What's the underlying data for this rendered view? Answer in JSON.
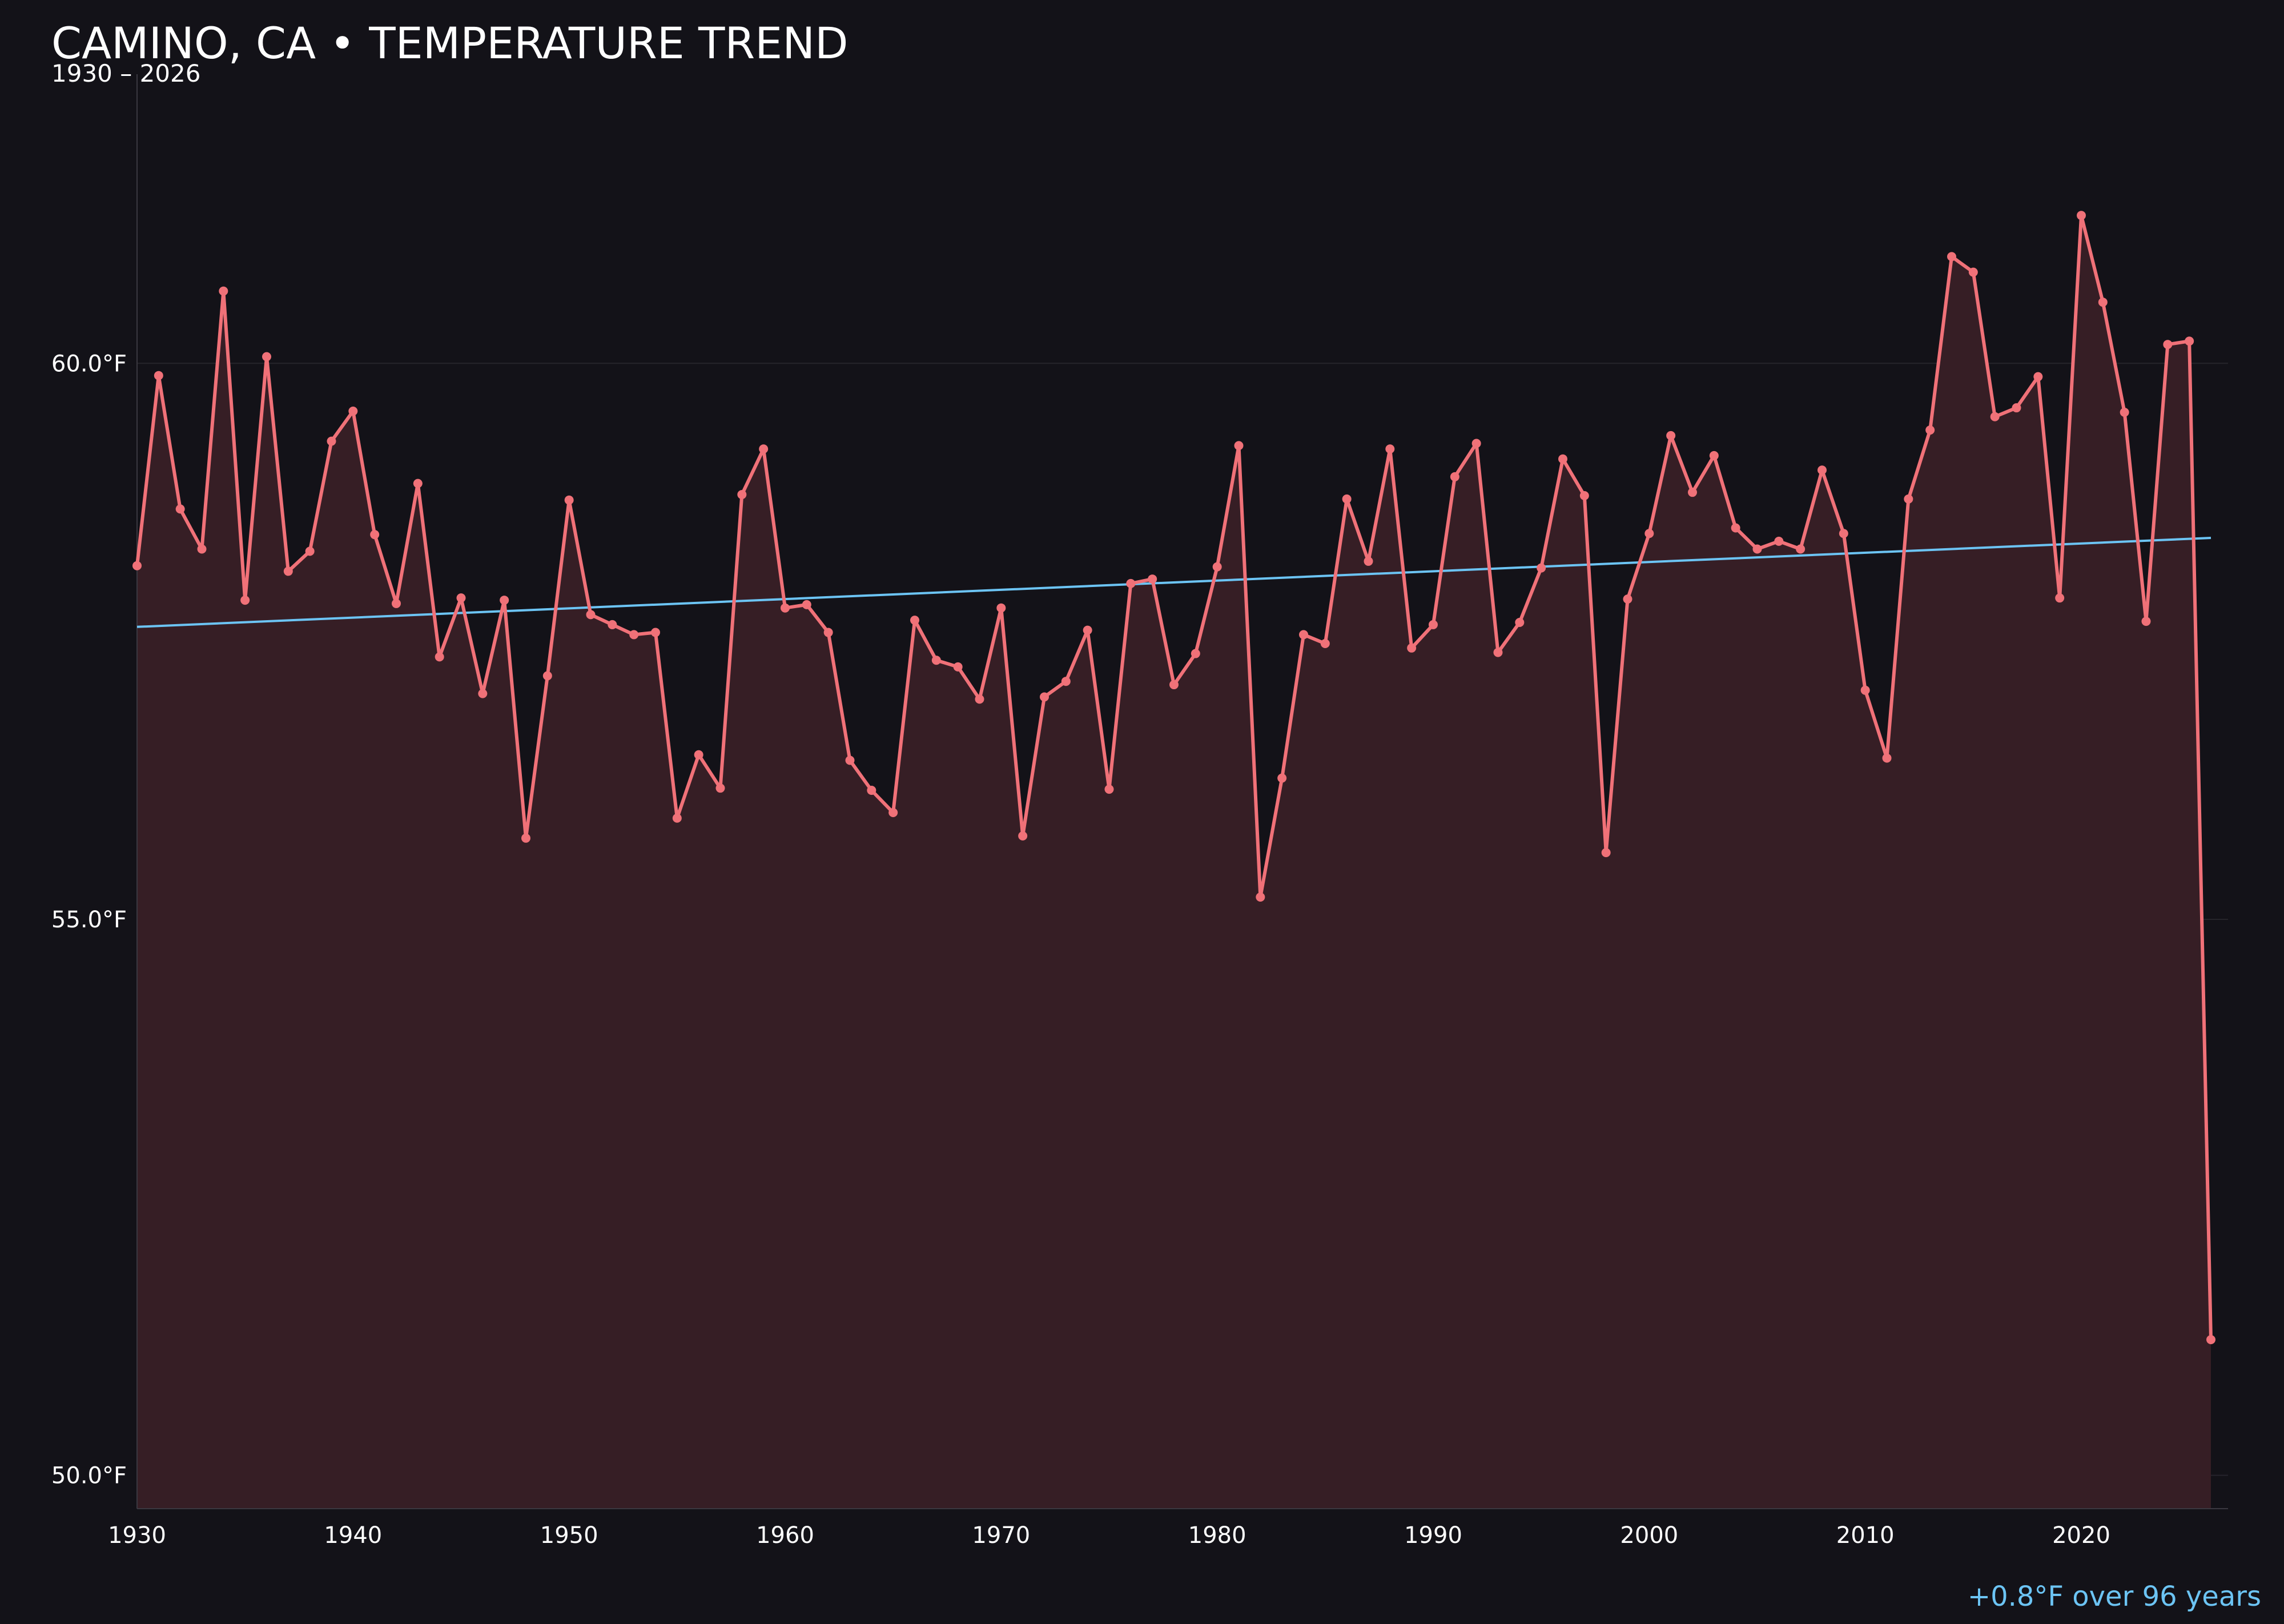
{
  "chart_data": {
    "type": "line",
    "title": "CAMINO, CA • TEMPERATURE TREND",
    "subtitle": "1930 – 2026",
    "xlabel": "",
    "ylabel": "",
    "xlim": [
      1930,
      2026
    ],
    "ylim": [
      49.7,
      62.6
    ],
    "x_ticks": [
      "1930",
      "1940",
      "1950",
      "1960",
      "1970",
      "1980",
      "1990",
      "2000",
      "2010",
      "2020"
    ],
    "y_ticks": [
      "50.0°F",
      "55.0°F",
      "60.0°F"
    ],
    "grid": "horizontal",
    "annotation": "+0.8°F over 96 years",
    "colors": {
      "background": "#131218",
      "line": "#f07178",
      "area_fill": "#361e25",
      "trend": "#6cc4f4",
      "annotation": "#6cc4f4",
      "grid": "#26242b",
      "axis": "#3a3840"
    },
    "series": [
      {
        "role": "temperature",
        "x": [
          1930,
          1931,
          1932,
          1933,
          1934,
          1935,
          1936,
          1937,
          1938,
          1939,
          1940,
          1941,
          1942,
          1943,
          1944,
          1945,
          1946,
          1947,
          1948,
          1949,
          1950,
          1951,
          1952,
          1953,
          1954,
          1955,
          1956,
          1957,
          1958,
          1959,
          1960,
          1961,
          1962,
          1963,
          1964,
          1965,
          1966,
          1967,
          1968,
          1969,
          1970,
          1971,
          1972,
          1973,
          1974,
          1975,
          1976,
          1977,
          1978,
          1979,
          1980,
          1981,
          1982,
          1983,
          1984,
          1985,
          1986,
          1987,
          1988,
          1989,
          1990,
          1991,
          1992,
          1993,
          1994,
          1995,
          1996,
          1997,
          1998,
          1999,
          2000,
          2001,
          2002,
          2003,
          2004,
          2005,
          2006,
          2007,
          2008,
          2009,
          2010,
          2011,
          2012,
          2013,
          2014,
          2015,
          2016,
          2017,
          2018,
          2019,
          2020,
          2021,
          2022,
          2023,
          2024,
          2025,
          2026
        ],
        "values": [
          58.18,
          59.89,
          58.69,
          58.33,
          60.65,
          57.87,
          60.06,
          58.13,
          58.31,
          59.3,
          59.57,
          58.46,
          57.84,
          58.92,
          57.36,
          57.89,
          57.03,
          57.87,
          55.73,
          57.19,
          58.77,
          57.74,
          57.65,
          57.56,
          57.58,
          55.91,
          56.48,
          56.18,
          58.82,
          59.23,
          57.8,
          57.83,
          57.58,
          56.43,
          56.16,
          55.96,
          57.69,
          57.33,
          57.27,
          56.98,
          57.8,
          55.75,
          57.0,
          57.14,
          57.6,
          56.17,
          58.02,
          58.06,
          57.11,
          57.39,
          58.17,
          59.26,
          55.2,
          56.27,
          57.56,
          57.48,
          58.78,
          58.22,
          59.23,
          57.44,
          57.65,
          58.98,
          59.28,
          57.4,
          57.67,
          58.16,
          59.14,
          58.81,
          55.6,
          57.88,
          58.47,
          59.35,
          58.84,
          59.17,
          58.52,
          58.33,
          58.4,
          58.33,
          59.04,
          58.47,
          57.06,
          56.45,
          58.78,
          59.4,
          60.96,
          60.82,
          59.52,
          59.6,
          59.88,
          57.89,
          61.33,
          60.55,
          59.56,
          57.68,
          60.17,
          60.2,
          51.22
        ]
      },
      {
        "role": "trend",
        "x": [
          1930,
          2026
        ],
        "values": [
          57.63,
          58.43
        ]
      }
    ]
  }
}
